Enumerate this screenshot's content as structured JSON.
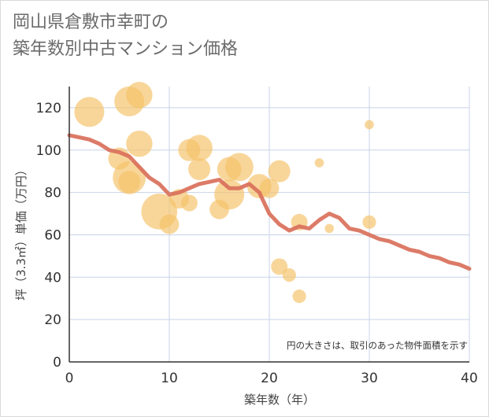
{
  "title": {
    "line1": "岡山県倉敷市幸町の",
    "line2": "築年数別中古マンション価格"
  },
  "chart_data": {
    "type": "scatter",
    "xlabel": "築年数（年）",
    "ylabel": "坪（3.3㎡）単価（万円）",
    "xlim": [
      0,
      40
    ],
    "ylim": [
      0,
      130
    ],
    "xticks": [
      0,
      10,
      20,
      30,
      40
    ],
    "yticks": [
      0,
      20,
      40,
      60,
      80,
      100,
      120
    ],
    "grid": true,
    "note": "円の大きさは、取引のあった物件面積を示す",
    "colors": {
      "bubble": "#f5c36a",
      "line": "#d9705b",
      "grid": "#c8d3e6"
    },
    "bubbles": [
      {
        "x": 2,
        "y": 118,
        "size": 4
      },
      {
        "x": 5,
        "y": 96,
        "size": 2
      },
      {
        "x": 6,
        "y": 123,
        "size": 4
      },
      {
        "x": 6,
        "y": 87,
        "size": 5
      },
      {
        "x": 6,
        "y": 85,
        "size": 2
      },
      {
        "x": 7,
        "y": 126,
        "size": 3
      },
      {
        "x": 7,
        "y": 103,
        "size": 3
      },
      {
        "x": 9,
        "y": 71,
        "size": 6
      },
      {
        "x": 10,
        "y": 65,
        "size": 1.5
      },
      {
        "x": 11,
        "y": 77,
        "size": 1.5
      },
      {
        "x": 12,
        "y": 75,
        "size": 1
      },
      {
        "x": 12,
        "y": 100,
        "size": 2
      },
      {
        "x": 13,
        "y": 101,
        "size": 3
      },
      {
        "x": 13,
        "y": 91,
        "size": 2
      },
      {
        "x": 15,
        "y": 72,
        "size": 1.5
      },
      {
        "x": 16,
        "y": 91,
        "size": 2.5
      },
      {
        "x": 16,
        "y": 79,
        "size": 4
      },
      {
        "x": 17,
        "y": 92,
        "size": 3.5
      },
      {
        "x": 19,
        "y": 83,
        "size": 2.5
      },
      {
        "x": 20,
        "y": 82,
        "size": 1.5
      },
      {
        "x": 21,
        "y": 90,
        "size": 2
      },
      {
        "x": 21,
        "y": 45,
        "size": 1
      },
      {
        "x": 22,
        "y": 41,
        "size": 0.6
      },
      {
        "x": 23,
        "y": 66,
        "size": 1
      },
      {
        "x": 23,
        "y": 31,
        "size": 0.6
      },
      {
        "x": 25,
        "y": 94,
        "size": 0.2
      },
      {
        "x": 26,
        "y": 63,
        "size": 0.2
      },
      {
        "x": 30,
        "y": 112,
        "size": 0.2
      },
      {
        "x": 30,
        "y": 66,
        "size": 0.6
      }
    ],
    "series": [
      {
        "x": [
          0,
          1,
          2,
          3,
          4,
          5,
          6,
          7,
          8,
          9,
          10,
          11,
          12,
          13,
          14,
          15,
          16,
          17,
          18,
          19,
          20,
          21,
          22,
          23,
          24,
          25,
          26,
          27,
          28,
          29,
          30,
          31,
          32,
          33,
          34,
          35,
          36,
          37,
          38,
          39,
          40
        ],
        "y": [
          107,
          106,
          105,
          103,
          100,
          99,
          97,
          92,
          87,
          84,
          79,
          80,
          82,
          84,
          85,
          86,
          82,
          82,
          84,
          80,
          70,
          65,
          62,
          64,
          63,
          67,
          70,
          68,
          63,
          62,
          60,
          58,
          57,
          55,
          53,
          52,
          50,
          49,
          47,
          46,
          44
        ]
      }
    ]
  }
}
